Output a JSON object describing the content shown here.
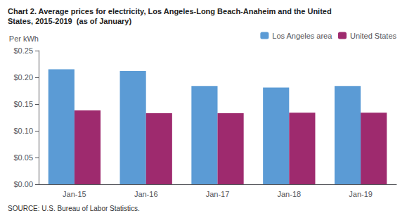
{
  "chart_data": {
    "type": "bar",
    "title": "Chart 2. Average prices for electricity, Los Angeles-Long Beach-Anaheim and the United\nStates, 2015-2019  (as of January)",
    "ylabel": "Per kWh",
    "source": "SOURCE: U.S. Bureau of Labor Statistics.",
    "categories": [
      "Jan-15",
      "Jan-16",
      "Jan-17",
      "Jan-18",
      "Jan-19"
    ],
    "series": [
      {
        "name": "Los Angeles area",
        "color": "#5B9BD5",
        "values": [
          0.215,
          0.212,
          0.184,
          0.181,
          0.184
        ]
      },
      {
        "name": "United States",
        "color": "#9E2A6E",
        "values": [
          0.138,
          0.133,
          0.133,
          0.134,
          0.134
        ]
      }
    ],
    "ylim": [
      0,
      0.25
    ],
    "yticks": [
      {
        "value": 0.0,
        "label": "$0.00"
      },
      {
        "value": 0.05,
        "label": "$0.05"
      },
      {
        "value": 0.1,
        "label": "$0.10"
      },
      {
        "value": 0.15,
        "label": "$0.15"
      },
      {
        "value": 0.2,
        "label": "$0.20"
      },
      {
        "value": 0.25,
        "label": "$0.25"
      }
    ],
    "grid": false,
    "legend": "upper right"
  }
}
